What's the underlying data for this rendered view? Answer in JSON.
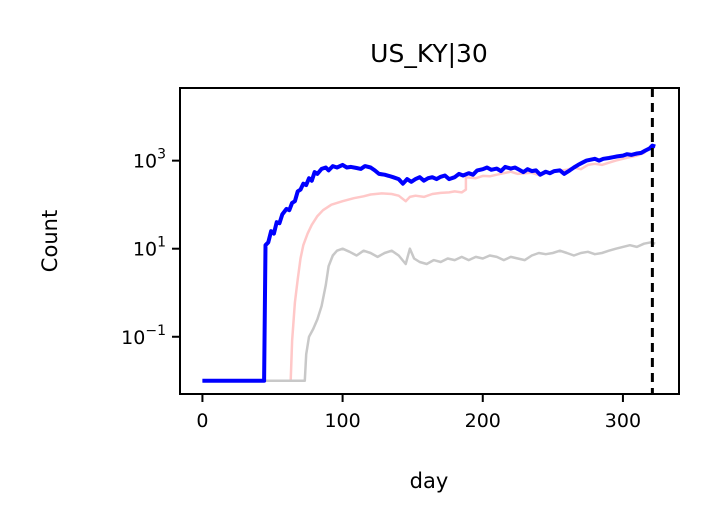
{
  "chart_data": {
    "type": "line",
    "title": "US_KY|30",
    "xlabel": "day",
    "ylabel": "Count",
    "xlim": [
      -16,
      340
    ],
    "ylim_log10": [
      -2.3,
      4.65
    ],
    "yscale": "log",
    "x_ticks": [
      0,
      100,
      200,
      300
    ],
    "x_tick_labels": [
      "0",
      "100",
      "200",
      "300"
    ],
    "y_ticks_log10": [
      -1,
      1,
      3
    ],
    "y_tick_labels": [
      {
        "base": "10",
        "exp": "−1"
      },
      {
        "base": "10",
        "exp": "1"
      },
      {
        "base": "10",
        "exp": "3"
      }
    ],
    "grid": false,
    "vline": {
      "x": 321,
      "style": "dashed",
      "color": "#000000"
    },
    "series": [
      {
        "color": "#ffc8c8",
        "points": [
          [
            0,
            0.01
          ],
          [
            60,
            0.01
          ],
          [
            63,
            0.01
          ],
          [
            64,
            0.08
          ],
          [
            66,
            0.6
          ],
          [
            68,
            2
          ],
          [
            70,
            6
          ],
          [
            72,
            12
          ],
          [
            75,
            22
          ],
          [
            78,
            35
          ],
          [
            82,
            55
          ],
          [
            86,
            75
          ],
          [
            92,
            100
          ],
          [
            100,
            120
          ],
          [
            108,
            140
          ],
          [
            115,
            155
          ],
          [
            120,
            170
          ],
          [
            128,
            180
          ],
          [
            135,
            175
          ],
          [
            140,
            160
          ],
          [
            145,
            120
          ],
          [
            148,
            150
          ],
          [
            152,
            160
          ],
          [
            158,
            150
          ],
          [
            164,
            175
          ],
          [
            170,
            185
          ],
          [
            176,
            190
          ],
          [
            180,
            200
          ],
          [
            185,
            190
          ],
          [
            188,
            220
          ],
          [
            188,
            420
          ],
          [
            195,
            400
          ],
          [
            200,
            450
          ],
          [
            205,
            440
          ],
          [
            210,
            480
          ],
          [
            215,
            520
          ],
          [
            220,
            560
          ],
          [
            225,
            500
          ],
          [
            230,
            520
          ],
          [
            235,
            530
          ],
          [
            240,
            470
          ],
          [
            245,
            520
          ],
          [
            250,
            560
          ],
          [
            255,
            590
          ],
          [
            260,
            620
          ],
          [
            265,
            700
          ],
          [
            270,
            640
          ],
          [
            275,
            800
          ],
          [
            280,
            850
          ],
          [
            285,
            800
          ],
          [
            290,
            900
          ],
          [
            295,
            1000
          ],
          [
            300,
            1100
          ],
          [
            305,
            1200
          ],
          [
            310,
            1300
          ],
          [
            315,
            1500
          ],
          [
            318,
            1800
          ],
          [
            320,
            2000
          ],
          [
            323,
            2100
          ]
        ]
      },
      {
        "color": "#c8c8c8",
        "points": [
          [
            0,
            0.01
          ],
          [
            70,
            0.01
          ],
          [
            73,
            0.01
          ],
          [
            74,
            0.04
          ],
          [
            76,
            0.1
          ],
          [
            79,
            0.15
          ],
          [
            82,
            0.25
          ],
          [
            85,
            0.5
          ],
          [
            88,
            1.5
          ],
          [
            90,
            4
          ],
          [
            93,
            7
          ],
          [
            96,
            9
          ],
          [
            100,
            10
          ],
          [
            105,
            8.5
          ],
          [
            110,
            7
          ],
          [
            115,
            9
          ],
          [
            120,
            8
          ],
          [
            125,
            6.5
          ],
          [
            130,
            8
          ],
          [
            135,
            9
          ],
          [
            140,
            7
          ],
          [
            145,
            4.5
          ],
          [
            148,
            10
          ],
          [
            151,
            6
          ],
          [
            155,
            5
          ],
          [
            160,
            4.5
          ],
          [
            165,
            5.5
          ],
          [
            170,
            5
          ],
          [
            175,
            6
          ],
          [
            180,
            5.5
          ],
          [
            185,
            6.5
          ],
          [
            190,
            5.5
          ],
          [
            195,
            6.5
          ],
          [
            200,
            6
          ],
          [
            205,
            7
          ],
          [
            210,
            6.5
          ],
          [
            215,
            5.5
          ],
          [
            220,
            6.5
          ],
          [
            225,
            6
          ],
          [
            230,
            5.5
          ],
          [
            235,
            7
          ],
          [
            240,
            8
          ],
          [
            245,
            7.5
          ],
          [
            250,
            8
          ],
          [
            255,
            9
          ],
          [
            260,
            8
          ],
          [
            265,
            7
          ],
          [
            270,
            8
          ],
          [
            275,
            8.5
          ],
          [
            280,
            7.5
          ],
          [
            285,
            8
          ],
          [
            290,
            9
          ],
          [
            295,
            10
          ],
          [
            300,
            11
          ],
          [
            305,
            12
          ],
          [
            310,
            11
          ],
          [
            315,
            13
          ],
          [
            320,
            14
          ],
          [
            323,
            13
          ]
        ]
      },
      {
        "color": "#0000ff",
        "points": [
          [
            0,
            0.01
          ],
          [
            44,
            0.01
          ],
          [
            45,
            12
          ],
          [
            47,
            14
          ],
          [
            49,
            25
          ],
          [
            51,
            22
          ],
          [
            53,
            40
          ],
          [
            55,
            38
          ],
          [
            57,
            60
          ],
          [
            60,
            80
          ],
          [
            62,
            75
          ],
          [
            64,
            110
          ],
          [
            66,
            120
          ],
          [
            68,
            200
          ],
          [
            70,
            220
          ],
          [
            72,
            300
          ],
          [
            74,
            280
          ],
          [
            76,
            400
          ],
          [
            78,
            350
          ],
          [
            80,
            550
          ],
          [
            82,
            500
          ],
          [
            85,
            650
          ],
          [
            88,
            700
          ],
          [
            90,
            600
          ],
          [
            93,
            750
          ],
          [
            96,
            700
          ],
          [
            100,
            800
          ],
          [
            103,
            700
          ],
          [
            106,
            720
          ],
          [
            110,
            680
          ],
          [
            113,
            650
          ],
          [
            116,
            750
          ],
          [
            120,
            700
          ],
          [
            123,
            600
          ],
          [
            126,
            500
          ],
          [
            130,
            480
          ],
          [
            133,
            450
          ],
          [
            136,
            420
          ],
          [
            140,
            380
          ],
          [
            143,
            300
          ],
          [
            146,
            380
          ],
          [
            149,
            330
          ],
          [
            152,
            380
          ],
          [
            155,
            420
          ],
          [
            158,
            350
          ],
          [
            161,
            400
          ],
          [
            164,
            420
          ],
          [
            167,
            380
          ],
          [
            170,
            430
          ],
          [
            173,
            460
          ],
          [
            176,
            380
          ],
          [
            180,
            420
          ],
          [
            183,
            500
          ],
          [
            186,
            460
          ],
          [
            190,
            520
          ],
          [
            193,
            480
          ],
          [
            196,
            600
          ],
          [
            200,
            640
          ],
          [
            203,
            700
          ],
          [
            206,
            620
          ],
          [
            210,
            660
          ],
          [
            213,
            580
          ],
          [
            216,
            720
          ],
          [
            220,
            660
          ],
          [
            223,
            700
          ],
          [
            226,
            620
          ],
          [
            229,
            550
          ],
          [
            232,
            640
          ],
          [
            235,
            580
          ],
          [
            238,
            600
          ],
          [
            241,
            480
          ],
          [
            245,
            560
          ],
          [
            248,
            520
          ],
          [
            251,
            580
          ],
          [
            255,
            600
          ],
          [
            258,
            500
          ],
          [
            262,
            600
          ],
          [
            265,
            700
          ],
          [
            268,
            800
          ],
          [
            271,
            900
          ],
          [
            274,
            1000
          ],
          [
            277,
            1050
          ],
          [
            280,
            1100
          ],
          [
            283,
            1000
          ],
          [
            286,
            1100
          ],
          [
            290,
            1150
          ],
          [
            293,
            1200
          ],
          [
            296,
            1250
          ],
          [
            300,
            1300
          ],
          [
            303,
            1400
          ],
          [
            306,
            1350
          ],
          [
            310,
            1450
          ],
          [
            313,
            1500
          ],
          [
            316,
            1700
          ],
          [
            319,
            1900
          ],
          [
            321,
            2200
          ],
          [
            323,
            2100
          ]
        ]
      }
    ]
  }
}
